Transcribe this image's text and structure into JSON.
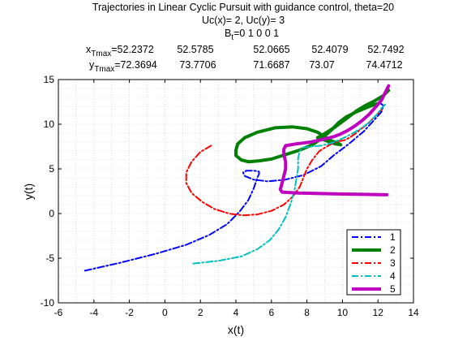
{
  "chart_data": {
    "type": "line",
    "title": "Trajectories in Linear Cyclic Pursuit with guidance control, theta=20",
    "subtitle_uc": "Uc(x)= 2, Uc(y)= 3",
    "bt_base": "B",
    "bt_sub": "t",
    "bt_values": "=0  1  0  0  1",
    "xtmax_base": "x",
    "xtmax_sub": "Tmax",
    "xtmax_values": [
      "=52.2372",
      "52.5785",
      "52.0665",
      "52.4079",
      "52.7492"
    ],
    "ytmax_base": "y",
    "ytmax_sub": "Tmax",
    "ytmax_values": [
      "=72.3694",
      "73.7706",
      "71.6687",
      "73.07",
      "74.4712"
    ],
    "xlabel": "x(t)",
    "ylabel": "y(t)",
    "xlim": [
      -6,
      14
    ],
    "ylim": [
      -10,
      15
    ],
    "xticks": [
      -6,
      -4,
      -2,
      0,
      2,
      4,
      6,
      8,
      10,
      12,
      14
    ],
    "yticks": [
      -10,
      -5,
      0,
      5,
      10,
      15
    ],
    "grid": true,
    "legend_position": "bottom-right",
    "series": [
      {
        "name": "1",
        "color": "#0000ff",
        "dash": "8,3,2,3",
        "width": 2,
        "points": [
          [
            -4.5,
            -6.4
          ],
          [
            -2.5,
            -5.5
          ],
          [
            -0.5,
            -4.5
          ],
          [
            1.2,
            -3.5
          ],
          [
            2.5,
            -2.4
          ],
          [
            3.5,
            -1.2
          ],
          [
            4.2,
            0.2
          ],
          [
            4.7,
            1.5
          ],
          [
            5.0,
            2.8
          ],
          [
            5.2,
            4.0
          ],
          [
            5.3,
            4.4
          ],
          [
            5.3,
            4.7
          ],
          [
            5.0,
            4.8
          ],
          [
            4.6,
            4.8
          ],
          [
            4.4,
            4.6
          ],
          [
            4.5,
            4.2
          ],
          [
            5.0,
            3.8
          ],
          [
            5.8,
            3.6
          ],
          [
            6.8,
            3.8
          ],
          [
            7.8,
            4.3
          ],
          [
            8.8,
            5.3
          ],
          [
            9.5,
            6.5
          ],
          [
            10.3,
            7.7
          ],
          [
            11.2,
            9.2
          ],
          [
            11.8,
            10.5
          ],
          [
            12.2,
            11.4
          ],
          [
            12.3,
            12.1
          ],
          [
            12.1,
            12.4
          ]
        ]
      },
      {
        "name": "2",
        "color": "#008000",
        "dash": "",
        "width": 4,
        "points": [
          [
            12.6,
            13.8
          ],
          [
            12.3,
            13.2
          ],
          [
            11.8,
            12.6
          ],
          [
            11.3,
            12.1
          ],
          [
            10.8,
            11.5
          ],
          [
            10.4,
            10.9
          ],
          [
            10.0,
            10.3
          ],
          [
            9.6,
            9.7
          ],
          [
            9.2,
            9.2
          ],
          [
            8.8,
            8.7
          ],
          [
            8.6,
            8.5
          ],
          [
            8.9,
            8.3
          ],
          [
            9.3,
            8.0
          ],
          [
            9.6,
            7.8
          ],
          [
            9.9,
            7.7
          ],
          [
            9.7,
            7.9
          ],
          [
            9.3,
            8.2
          ],
          [
            9.0,
            8.6
          ],
          [
            8.6,
            9.1
          ],
          [
            8.0,
            9.5
          ],
          [
            7.2,
            9.7
          ],
          [
            6.2,
            9.6
          ],
          [
            5.2,
            9.1
          ],
          [
            4.5,
            8.5
          ],
          [
            4.1,
            7.8
          ],
          [
            4.0,
            7.1
          ],
          [
            4.0,
            6.5
          ],
          [
            4.3,
            6.0
          ],
          [
            4.7,
            5.8
          ],
          [
            5.3,
            5.9
          ],
          [
            6.0,
            6.1
          ],
          [
            6.8,
            6.6
          ],
          [
            7.6,
            7.1
          ],
          [
            8.3,
            7.7
          ],
          [
            8.9,
            8.5
          ],
          [
            9.4,
            9.4
          ],
          [
            9.8,
            10.2
          ],
          [
            10.2,
            10.8
          ],
          [
            10.8,
            11.4
          ],
          [
            11.4,
            11.9
          ],
          [
            11.8,
            12.2
          ],
          [
            12.0,
            12.3
          ]
        ]
      },
      {
        "name": "3",
        "color": "#ff0000",
        "dash": "8,3,2,3",
        "width": 2,
        "points": [
          [
            2.6,
            7.6
          ],
          [
            2.0,
            6.9
          ],
          [
            1.5,
            5.8
          ],
          [
            1.2,
            4.6
          ],
          [
            1.2,
            3.4
          ],
          [
            1.5,
            2.3
          ],
          [
            2.1,
            1.3
          ],
          [
            2.8,
            0.5
          ],
          [
            3.6,
            0.0
          ],
          [
            4.4,
            -0.2
          ],
          [
            5.2,
            -0.1
          ],
          [
            6.0,
            0.3
          ],
          [
            6.7,
            1.0
          ],
          [
            7.2,
            1.9
          ],
          [
            7.6,
            3.0
          ],
          [
            7.8,
            4.0
          ],
          [
            8.0,
            5.0
          ],
          [
            8.3,
            6.0
          ],
          [
            8.7,
            7.0
          ],
          [
            9.2,
            7.6
          ],
          [
            9.6,
            8.0
          ],
          [
            9.8,
            8.1
          ],
          [
            10.1,
            8.2
          ],
          [
            10.4,
            8.5
          ],
          [
            10.7,
            8.9
          ],
          [
            11.0,
            9.4
          ],
          [
            11.4,
            10.0
          ],
          [
            11.8,
            10.8
          ],
          [
            12.2,
            11.6
          ]
        ]
      },
      {
        "name": "4",
        "color": "#00bfbf",
        "dash": "8,3,2,3",
        "width": 2,
        "points": [
          [
            1.6,
            -5.6
          ],
          [
            3.0,
            -5.3
          ],
          [
            4.3,
            -4.8
          ],
          [
            5.2,
            -4.0
          ],
          [
            5.9,
            -3.0
          ],
          [
            6.4,
            -1.8
          ],
          [
            6.8,
            -0.4
          ],
          [
            7.1,
            1.2
          ],
          [
            7.3,
            2.6
          ],
          [
            7.4,
            3.8
          ],
          [
            7.5,
            5.0
          ],
          [
            7.5,
            6.2
          ],
          [
            7.6,
            7.0
          ],
          [
            7.8,
            7.4
          ],
          [
            8.2,
            7.5
          ],
          [
            8.8,
            7.6
          ],
          [
            9.4,
            7.9
          ],
          [
            10.0,
            8.4
          ],
          [
            10.6,
            9.0
          ],
          [
            11.1,
            9.6
          ],
          [
            11.5,
            10.2
          ],
          [
            11.9,
            11.0
          ],
          [
            12.2,
            11.8
          ],
          [
            12.4,
            12.2
          ]
        ]
      },
      {
        "name": "5",
        "color": "#bf00bf",
        "dash": "",
        "width": 4,
        "points": [
          [
            12.5,
            2.1
          ],
          [
            9.5,
            2.2
          ],
          [
            7.5,
            2.3
          ],
          [
            6.6,
            2.4
          ],
          [
            6.5,
            2.7
          ],
          [
            6.6,
            3.4
          ],
          [
            6.7,
            4.2
          ],
          [
            6.8,
            5.0
          ],
          [
            6.8,
            5.8
          ],
          [
            6.7,
            6.6
          ],
          [
            6.7,
            7.2
          ],
          [
            6.8,
            7.6
          ],
          [
            7.4,
            7.8
          ],
          [
            8.2,
            8.0
          ],
          [
            8.9,
            8.3
          ],
          [
            9.5,
            8.6
          ],
          [
            9.9,
            8.9
          ],
          [
            10.3,
            9.3
          ],
          [
            10.7,
            9.8
          ],
          [
            11.1,
            10.4
          ],
          [
            11.5,
            11.1
          ],
          [
            11.9,
            12.0
          ],
          [
            12.2,
            12.7
          ],
          [
            12.6,
            14.3
          ]
        ]
      }
    ]
  }
}
